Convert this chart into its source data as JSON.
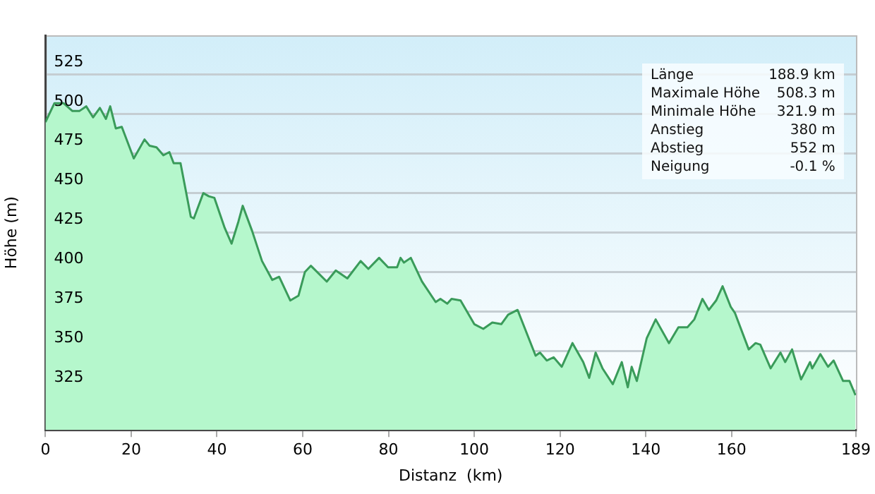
{
  "chart_data": {
    "type": "area",
    "xlabel": "Distanz  (km)",
    "ylabel": "Höhe (m)",
    "x": [
      0,
      2.1,
      4.2,
      6.3,
      7.9,
      9.5,
      11.1,
      12.7,
      14.1,
      15.1,
      16.4,
      17.8,
      20.6,
      23.1,
      24.3,
      25.9,
      27.5,
      28.9,
      29.9,
      31.5,
      33.9,
      34.6,
      36.8,
      38.1,
      39.4,
      41.8,
      43.4,
      45,
      46,
      48.2,
      50.5,
      52.9,
      54.5,
      57.1,
      59,
      60.5,
      61.9,
      65.6,
      67.7,
      70.4,
      73.5,
      75.3,
      77.8,
      79.9,
      82,
      82.8,
      83.6,
      85.2,
      87.8,
      91,
      92.1,
      93.7,
      94.7,
      96.8,
      100,
      102.1,
      104.2,
      106.3,
      107.9,
      110.1,
      114.3,
      115.3,
      116.9,
      118.5,
      120.4,
      122.9,
      125.4,
      126.8,
      128.3,
      129.9,
      132.3,
      134.4,
      135.8,
      136.7,
      137.9,
      140.2,
      142.3,
      145.4,
      147.6,
      149.7,
      151.3,
      153.2,
      154.7,
      156.4,
      157.9,
      159.8,
      160.8,
      164,
      165.6,
      166.7,
      169.1,
      171.4,
      172.5,
      174.1,
      176.2,
      178.3,
      178.8,
      180.7,
      182.5,
      183.8,
      186,
      187.5,
      188.9
    ],
    "series": [
      {
        "color": "#3a9b5a",
        "values": [
          495,
          507,
          507,
          502,
          502,
          505,
          498,
          504,
          497,
          505,
          491,
          492,
          472,
          484,
          480,
          479,
          474,
          476,
          469,
          469,
          435,
          434,
          450,
          448,
          447,
          428,
          418,
          432,
          442,
          426,
          407,
          395,
          397,
          382,
          385,
          400,
          404,
          394,
          401,
          396,
          407,
          402,
          409,
          403,
          403,
          409,
          406,
          409,
          394,
          381,
          383,
          380,
          383,
          382,
          367,
          364,
          368,
          367,
          373,
          376,
          347,
          349,
          344,
          346,
          340,
          355,
          343,
          333,
          349,
          339,
          329,
          343,
          327,
          340,
          331,
          358,
          370,
          355,
          365,
          365,
          370,
          383,
          376,
          382,
          391,
          378,
          374,
          351,
          355,
          354,
          339,
          349,
          343,
          351,
          332,
          343,
          339,
          348,
          340,
          344,
          331,
          331,
          322
        ]
      }
    ],
    "xlim": [
      0,
      189
    ],
    "xticks": [
      0,
      20,
      40,
      60,
      80,
      100,
      120,
      140,
      160,
      189
    ],
    "ylim": [
      300,
      550
    ],
    "yticks": [
      325,
      350,
      375,
      400,
      425,
      450,
      475,
      500,
      525
    ],
    "grid": "y",
    "legend": false,
    "marker": "none",
    "line_style": "solid",
    "annotations": [
      "Länge",
      "188.9 km",
      "Maximale Höhe",
      "508.3 m",
      "Minimale Höhe",
      "321.9 m",
      "Anstieg",
      "380 m",
      "Abstieg",
      "552 m",
      "Neigung",
      "-0.1 %"
    ]
  }
}
